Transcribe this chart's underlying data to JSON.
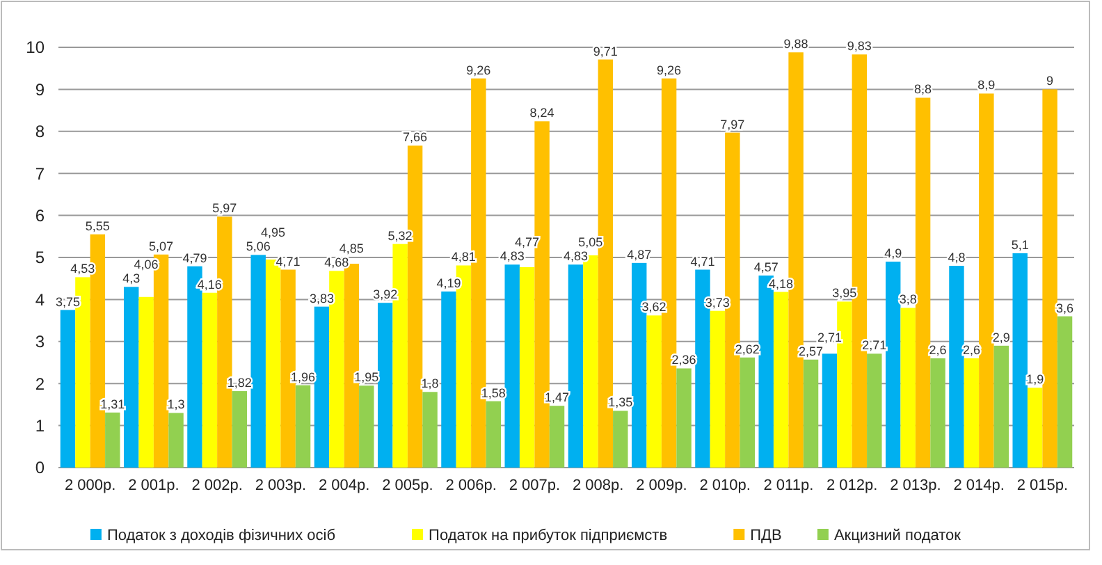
{
  "chart_data": {
    "type": "bar",
    "categories": [
      "2 000р.",
      "2 001р.",
      "2 002р.",
      "2 003р.",
      "2 004р.",
      "2 005р.",
      "2 006р.",
      "2 007р.",
      "2 008р.",
      "2 009р.",
      "2 010р.",
      "2 011р.",
      "2 012р.",
      "2 013р.",
      "2 014р.",
      "2 015р."
    ],
    "series": [
      {
        "name": "Податок з доходів фізичних осіб",
        "color": "#00b0f0",
        "values": [
          3.75,
          4.3,
          4.79,
          5.06,
          3.83,
          3.92,
          4.19,
          4.83,
          4.83,
          4.87,
          4.71,
          4.57,
          2.71,
          4.9,
          4.8,
          5.1
        ],
        "value_labels": [
          "3,75",
          "4,3",
          "4,79",
          "5,06",
          "3,83",
          "3,92",
          "4,19",
          "4,83",
          "4,83",
          "4,87",
          "4,71",
          "4,57",
          "2,71",
          "4,9",
          "4,8",
          "5,1"
        ]
      },
      {
        "name": "Податок на прибуток підприємств",
        "color": "#ffff00",
        "values": [
          4.53,
          4.06,
          4.16,
          4.95,
          4.68,
          5.32,
          4.81,
          4.77,
          5.05,
          3.62,
          3.73,
          4.18,
          3.95,
          3.8,
          2.6,
          1.9
        ],
        "value_labels": [
          "4,53",
          "4,06",
          "4,16",
          "4,95",
          "4,68",
          "5,32",
          "4,81",
          "4,77",
          "5,05",
          "3,62",
          "3,73",
          "4,18",
          "3,95",
          "3,8",
          "2,6",
          "1,9"
        ]
      },
      {
        "name": "ПДВ",
        "color": "#ffc000",
        "values": [
          5.55,
          5.07,
          5.97,
          4.71,
          4.85,
          7.66,
          9.26,
          8.24,
          9.71,
          9.26,
          7.97,
          9.88,
          9.83,
          8.8,
          8.9,
          9
        ],
        "value_labels": [
          "5,55",
          "5,07",
          "5,97",
          "4,71",
          "4,85",
          "7,66",
          "9,26",
          "8,24",
          "9,71",
          "9,26",
          "7,97",
          "9,88",
          "9,83",
          "8,8",
          "8,9",
          "9"
        ]
      },
      {
        "name": "Акцизний податок",
        "color": "#92d050",
        "values": [
          1.31,
          1.3,
          1.82,
          1.96,
          1.95,
          1.8,
          1.58,
          1.47,
          1.35,
          2.36,
          2.62,
          2.57,
          2.71,
          2.6,
          2.9,
          3.6
        ],
        "value_labels": [
          "1,31",
          "1,3",
          "1,82",
          "1,96",
          "1,95",
          "1,8",
          "1,58",
          "1,47",
          "1,35",
          "2,36",
          "2,62",
          "2,57",
          "2,71",
          "2,6",
          "2,9",
          "3,6"
        ]
      }
    ],
    "ylim": [
      0,
      10
    ],
    "yticks": [
      0,
      1,
      2,
      3,
      4,
      5,
      6,
      7,
      8,
      9,
      10
    ],
    "grid": "y",
    "legend": "bottom"
  }
}
